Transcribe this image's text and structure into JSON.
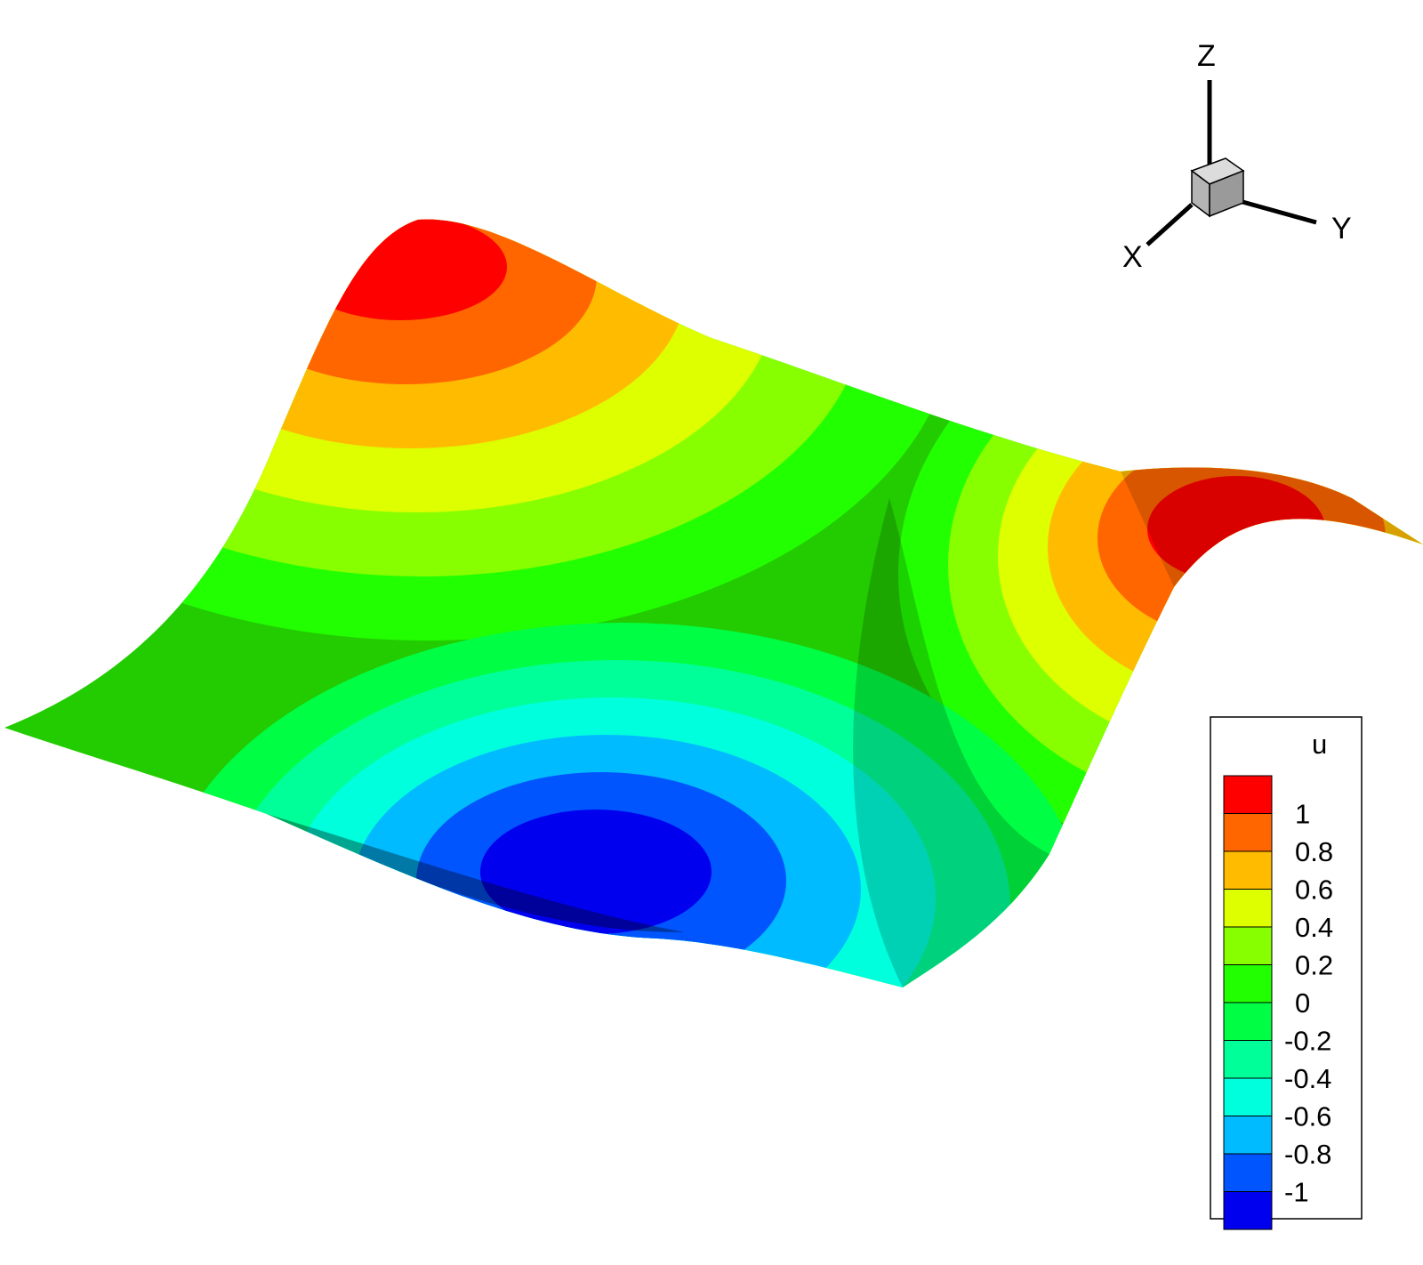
{
  "chart_data": {
    "type": "surface-contour",
    "variable": "u",
    "axes": {
      "x": "X",
      "y": "Y",
      "z": "Z"
    },
    "levels": [
      1,
      0.8,
      0.6,
      0.4,
      0.2,
      0,
      -0.2,
      -0.4,
      -0.6,
      -0.8,
      -1
    ],
    "level_labels": [
      "1",
      "0.8",
      "0.6",
      "0.4",
      "0.2",
      "0",
      "-0.2",
      "-0.4",
      "-0.6",
      "-0.8",
      "-1"
    ],
    "band_colors": [
      "#ff0000",
      "#ff6600",
      "#ffbb00",
      "#ddff00",
      "#88ff00",
      "#22ff00",
      "#00ff44",
      "#00ff99",
      "#00ffdd",
      "#00bbff",
      "#0055ff",
      "#0000ee"
    ],
    "extrema": [
      {
        "kind": "max",
        "value": 1
      },
      {
        "kind": "max",
        "value": 1
      },
      {
        "kind": "min",
        "value": -1
      }
    ],
    "legend_position": "bottom-right"
  }
}
